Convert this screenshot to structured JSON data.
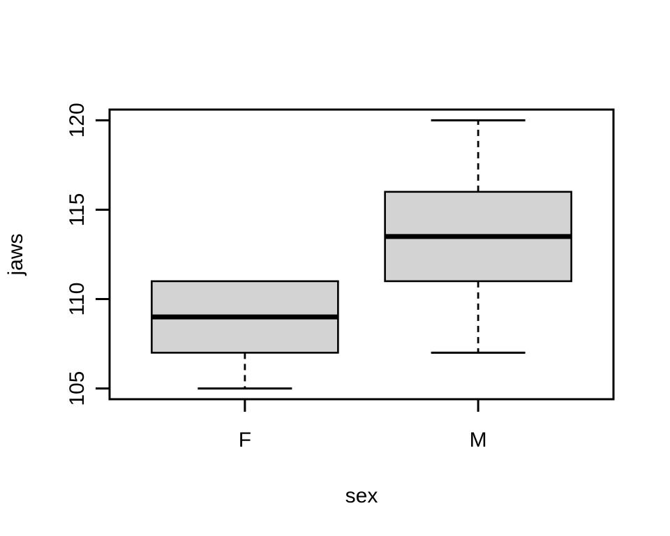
{
  "figure": {
    "background": "#ffffff"
  },
  "chart_data": {
    "type": "boxplot",
    "title": "",
    "xlabel": "sex",
    "ylabel": "jaws",
    "categories": [
      "F",
      "M"
    ],
    "yticks": [
      "105",
      "110",
      "115",
      "120"
    ],
    "ytick_values": [
      105,
      110,
      115,
      120
    ],
    "ylim": [
      104.4,
      120.6
    ],
    "series": [
      {
        "name": "F",
        "min": 105,
        "q1": 107,
        "median": 109,
        "q3": 111,
        "max": 111
      },
      {
        "name": "M",
        "min": 107,
        "q1": 111,
        "median": 113.5,
        "q3": 116,
        "max": 120
      }
    ],
    "box_fill": "#d3d3d3",
    "stroke_color": "#000000",
    "whisker_style": "dashed",
    "grid": false,
    "legend": false
  }
}
